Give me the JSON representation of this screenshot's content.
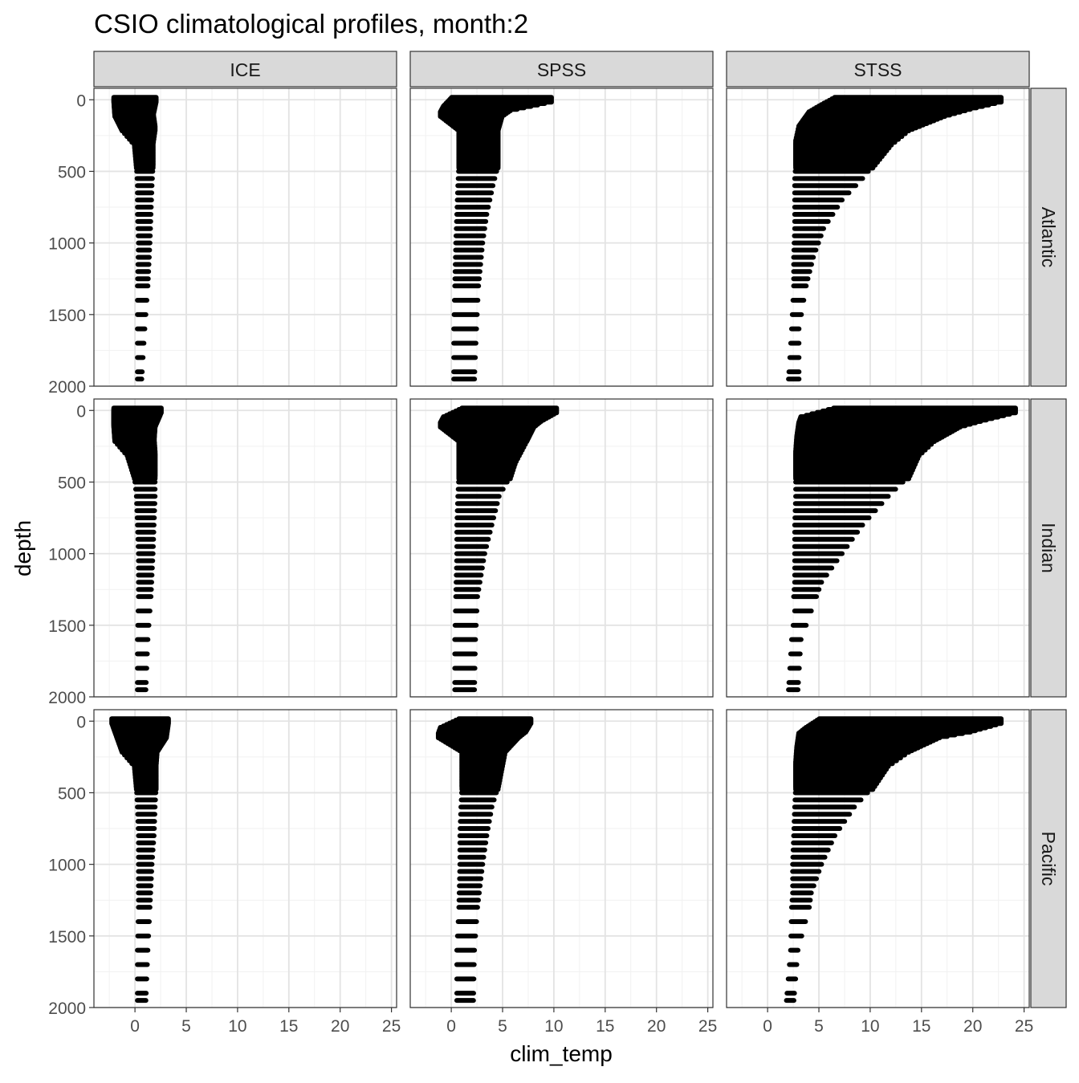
{
  "chart_data": {
    "type": "scatter",
    "title": "CSIO climatological profiles, month:2",
    "xlabel": "clim_temp",
    "ylabel": "depth",
    "xlim": [
      -4,
      25.5
    ],
    "ylim": [
      2000,
      -80
    ],
    "y_reversed": true,
    "x_ticks": [
      0,
      5,
      10,
      15,
      20,
      25
    ],
    "y_ticks": [
      0,
      500,
      1000,
      1500,
      2000
    ],
    "grid": true,
    "legend": "none",
    "facet_columns": [
      "ICE",
      "SPSS",
      "STSS"
    ],
    "facet_rows": [
      "Atlantic",
      "Indian",
      "Pacific"
    ],
    "depth_levels": [
      0,
      10,
      20,
      30,
      40,
      50,
      60,
      70,
      80,
      90,
      100,
      110,
      120,
      130,
      140,
      150,
      160,
      170,
      180,
      190,
      200,
      220,
      240,
      260,
      280,
      300,
      320,
      340,
      360,
      380,
      400,
      420,
      440,
      460,
      500,
      550,
      600,
      650,
      700,
      750,
      800,
      850,
      900,
      950,
      1000,
      1050,
      1100,
      1150,
      1200,
      1250,
      1300,
      1400,
      1500,
      1600,
      1700,
      1800,
      1900,
      1950
    ],
    "panels": [
      {
        "column": "ICE",
        "row": "Atlantic",
        "profile": [
          [
            0,
            -2.3,
            2.3
          ],
          [
            100,
            -2.2,
            2.0
          ],
          [
            200,
            -1.5,
            2.2
          ],
          [
            300,
            -0.3,
            2.0
          ],
          [
            460,
            -0.1,
            2.0
          ],
          [
            600,
            0.0,
            1.9
          ],
          [
            800,
            0.0,
            1.8
          ],
          [
            1000,
            0.1,
            1.7
          ],
          [
            1300,
            0.0,
            1.5
          ],
          [
            1600,
            0.0,
            1.2
          ],
          [
            1950,
            0.0,
            0.9
          ]
        ]
      },
      {
        "column": "SPSS",
        "row": "Atlantic",
        "profile": [
          [
            0,
            -0.2,
            10.0
          ],
          [
            60,
            -1.0,
            6.0
          ],
          [
            100,
            -1.3,
            5.2
          ],
          [
            200,
            0.5,
            4.8
          ],
          [
            460,
            0.5,
            4.8
          ],
          [
            600,
            0.4,
            4.3
          ],
          [
            800,
            0.3,
            3.7
          ],
          [
            1000,
            0.2,
            3.3
          ],
          [
            1300,
            0.1,
            2.9
          ],
          [
            1600,
            0.0,
            2.7
          ],
          [
            1950,
            0.0,
            2.5
          ]
        ]
      },
      {
        "column": "STSS",
        "row": "Atlantic",
        "profile": [
          [
            0,
            6.3,
            23.0
          ],
          [
            50,
            5.0,
            20.0
          ],
          [
            100,
            3.8,
            17.5
          ],
          [
            200,
            2.8,
            14.0
          ],
          [
            300,
            2.5,
            12.3
          ],
          [
            460,
            2.5,
            10.5
          ],
          [
            550,
            2.4,
            9.5
          ],
          [
            700,
            2.4,
            7.5
          ],
          [
            900,
            2.4,
            5.7
          ],
          [
            1100,
            2.3,
            4.7
          ],
          [
            1300,
            2.3,
            4.0
          ],
          [
            1600,
            2.1,
            3.3
          ],
          [
            1950,
            1.8,
            3.3
          ]
        ]
      },
      {
        "column": "ICE",
        "row": "Indian",
        "profile": [
          [
            0,
            -2.3,
            2.8
          ],
          [
            100,
            -2.3,
            2.2
          ],
          [
            200,
            -2.2,
            2.1
          ],
          [
            300,
            -1.0,
            2.2
          ],
          [
            460,
            -0.3,
            2.2
          ],
          [
            600,
            -0.1,
            2.2
          ],
          [
            800,
            0.0,
            2.1
          ],
          [
            1000,
            0.1,
            2.0
          ],
          [
            1300,
            0.1,
            1.8
          ],
          [
            1600,
            0.0,
            1.5
          ],
          [
            1950,
            0.0,
            1.3
          ]
        ]
      },
      {
        "column": "SPSS",
        "row": "Indian",
        "profile": [
          [
            0,
            0.8,
            10.5
          ],
          [
            60,
            -1.0,
            9.0
          ],
          [
            100,
            -1.3,
            8.3
          ],
          [
            200,
            0.5,
            7.6
          ],
          [
            350,
            0.5,
            6.5
          ],
          [
            460,
            0.5,
            6.0
          ],
          [
            600,
            0.4,
            4.9
          ],
          [
            800,
            0.3,
            4.2
          ],
          [
            1000,
            0.3,
            3.5
          ],
          [
            1300,
            0.2,
            2.8
          ],
          [
            1600,
            0.1,
            2.6
          ],
          [
            1950,
            0.1,
            2.5
          ]
        ]
      },
      {
        "column": "STSS",
        "row": "Indian",
        "profile": [
          [
            0,
            6.2,
            24.4
          ],
          [
            60,
            3.0,
            21.0
          ],
          [
            100,
            2.8,
            19.0
          ],
          [
            200,
            2.6,
            16.5
          ],
          [
            300,
            2.5,
            15.0
          ],
          [
            460,
            2.5,
            14.0
          ],
          [
            600,
            2.5,
            12.0
          ],
          [
            800,
            2.4,
            9.5
          ],
          [
            1000,
            2.4,
            7.5
          ],
          [
            1200,
            2.4,
            5.5
          ],
          [
            1300,
            2.3,
            5.0
          ],
          [
            1400,
            2.4,
            4.5
          ],
          [
            1600,
            2.1,
            3.5
          ],
          [
            1950,
            1.8,
            3.2
          ]
        ]
      },
      {
        "column": "ICE",
        "row": "Pacific",
        "profile": [
          [
            0,
            -2.5,
            3.5
          ],
          [
            100,
            -2.0,
            3.3
          ],
          [
            200,
            -1.5,
            2.4
          ],
          [
            300,
            -0.3,
            2.3
          ],
          [
            460,
            -0.1,
            2.3
          ],
          [
            600,
            0.0,
            2.2
          ],
          [
            800,
            0.1,
            2.1
          ],
          [
            1000,
            0.1,
            1.9
          ],
          [
            1300,
            0.1,
            1.7
          ],
          [
            1600,
            0.0,
            1.5
          ],
          [
            1950,
            0.0,
            1.3
          ]
        ]
      },
      {
        "column": "SPSS",
        "row": "Pacific",
        "profile": [
          [
            0,
            0.5,
            8.0
          ],
          [
            60,
            -1.3,
            7.5
          ],
          [
            100,
            -1.5,
            6.8
          ],
          [
            200,
            0.8,
            5.5
          ],
          [
            460,
            0.8,
            4.8
          ],
          [
            600,
            0.7,
            4.2
          ],
          [
            800,
            0.6,
            3.7
          ],
          [
            1000,
            0.6,
            3.3
          ],
          [
            1300,
            0.5,
            2.8
          ],
          [
            1600,
            0.3,
            2.5
          ],
          [
            1950,
            0.3,
            2.4
          ]
        ]
      },
      {
        "column": "STSS",
        "row": "Pacific",
        "profile": [
          [
            0,
            4.8,
            23.0
          ],
          [
            60,
            3.5,
            20.0
          ],
          [
            100,
            2.8,
            17.0
          ],
          [
            200,
            2.6,
            14.0
          ],
          [
            300,
            2.5,
            12.0
          ],
          [
            460,
            2.5,
            10.5
          ],
          [
            600,
            2.4,
            8.7
          ],
          [
            800,
            2.3,
            6.8
          ],
          [
            1000,
            2.2,
            5.5
          ],
          [
            1200,
            2.2,
            4.5
          ],
          [
            1300,
            2.1,
            4.3
          ],
          [
            1600,
            2.0,
            3.2
          ],
          [
            1950,
            1.6,
            2.8
          ]
        ]
      }
    ]
  }
}
